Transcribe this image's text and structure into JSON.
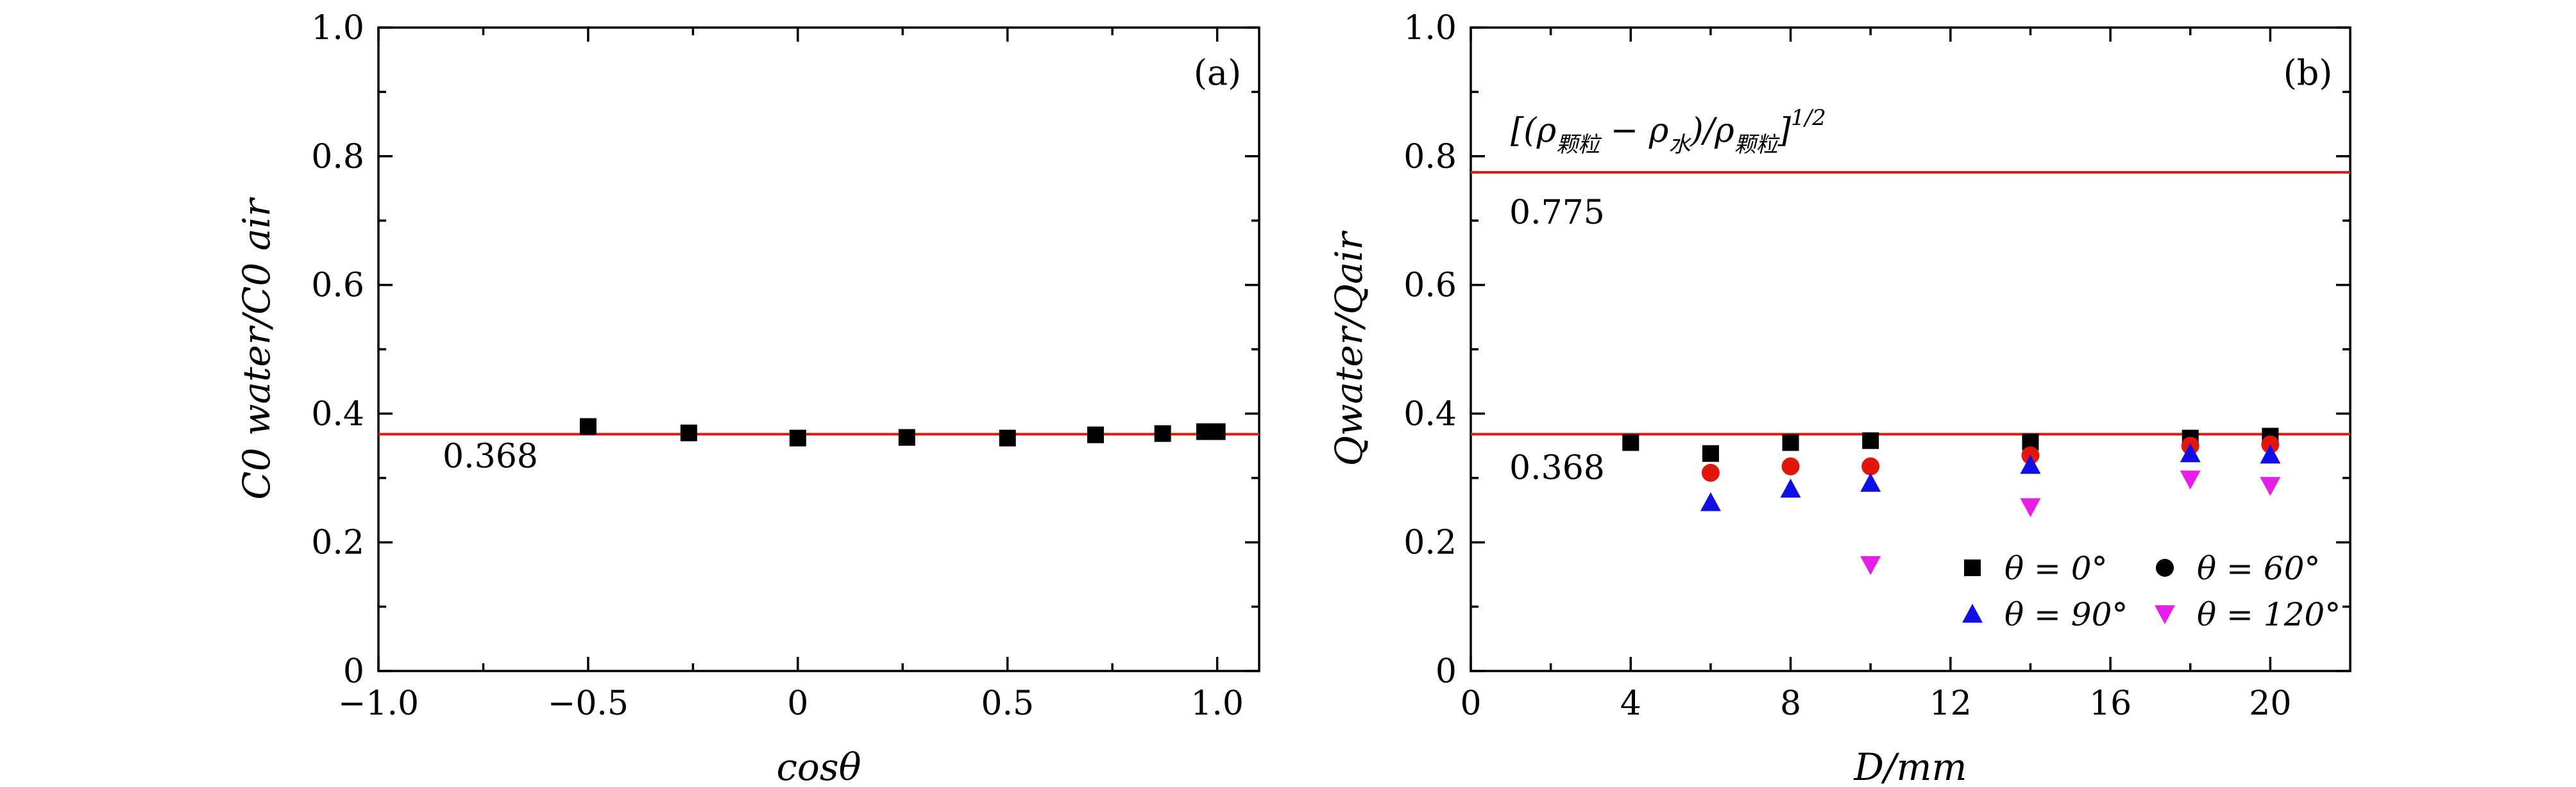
{
  "chart_data": [
    {
      "type": "scatter",
      "panel": "(a)",
      "title": "",
      "xlabel": "cosθ",
      "ylabel": "C0 water/C0 air",
      "xlim": [
        -1.0,
        1.1
      ],
      "ylim": [
        0,
        1.0
      ],
      "x_ticks": [
        -1.0,
        -0.5,
        0,
        0.5,
        1.0
      ],
      "x_tick_labels": [
        "−1.0",
        "−0.5",
        "0",
        "0.5",
        "1.0"
      ],
      "y_ticks": [
        0,
        0.2,
        0.4,
        0.6,
        0.8,
        1.0
      ],
      "y_tick_labels": [
        "0",
        "0.2",
        "0.4",
        "0.6",
        "0.8",
        "1.0"
      ],
      "grid": false,
      "reference_lines": [
        {
          "y": 0.368,
          "label": "0.368",
          "color": "#e3160b"
        }
      ],
      "series": [
        {
          "marker": "square",
          "color": "#000000",
          "x": [
            -0.5,
            -0.26,
            0.0,
            0.26,
            0.5,
            0.71,
            0.87,
            0.97,
            1.0
          ],
          "y": [
            0.38,
            0.37,
            0.362,
            0.363,
            0.362,
            0.367,
            0.369,
            0.372,
            0.372
          ]
        }
      ]
    },
    {
      "type": "scatter",
      "panel": "(b)",
      "title": "",
      "xlabel": "D/mm",
      "ylabel": "Qwater/Qair",
      "xlim": [
        0,
        22
      ],
      "ylim": [
        0,
        1.0
      ],
      "x_ticks": [
        0,
        4,
        8,
        12,
        16,
        20
      ],
      "x_tick_labels": [
        "0",
        "4",
        "8",
        "12",
        "16",
        "20"
      ],
      "y_ticks": [
        0,
        0.2,
        0.4,
        0.6,
        0.8,
        1.0
      ],
      "y_tick_labels": [
        "0",
        "0.2",
        "0.4",
        "0.6",
        "0.8",
        "1.0"
      ],
      "grid": false,
      "legend_position": "bottom-right",
      "formula": {
        "open": "[(ρ",
        "sub1": "颗粒",
        "mid": " − ρ",
        "sub2": "水",
        "mid2": ")/ρ",
        "sub3": "颗粒",
        "close": "]",
        "sup": "1/2"
      },
      "reference_lines": [
        {
          "y": 0.775,
          "label": "0.775",
          "color": "#e3160b"
        },
        {
          "y": 0.368,
          "label": "0.368",
          "color": "#e3160b"
        }
      ],
      "series": [
        {
          "name": "θ = 0°",
          "marker": "square",
          "color": "#000000",
          "x": [
            4,
            6,
            8,
            10,
            14,
            18,
            20
          ],
          "y": [
            0.355,
            0.338,
            0.355,
            0.358,
            0.356,
            0.362,
            0.365
          ]
        },
        {
          "name": "θ = 60°",
          "marker": "circle",
          "color": "#e3160b",
          "legend_color": "#000000",
          "x": [
            6,
            8,
            10,
            14,
            18,
            20
          ],
          "y": [
            0.308,
            0.318,
            0.318,
            0.335,
            0.35,
            0.352
          ]
        },
        {
          "name": "θ = 90°",
          "marker": "triangle-up",
          "color": "#1010e6",
          "x": [
            6,
            8,
            10,
            14,
            18,
            20
          ],
          "y": [
            0.262,
            0.283,
            0.292,
            0.32,
            0.338,
            0.336
          ]
        },
        {
          "name": "θ = 120°",
          "marker": "triangle-down",
          "color": "#e61ee6",
          "x": [
            10,
            14,
            18,
            20
          ],
          "y": [
            0.165,
            0.255,
            0.298,
            0.288
          ]
        }
      ]
    }
  ]
}
